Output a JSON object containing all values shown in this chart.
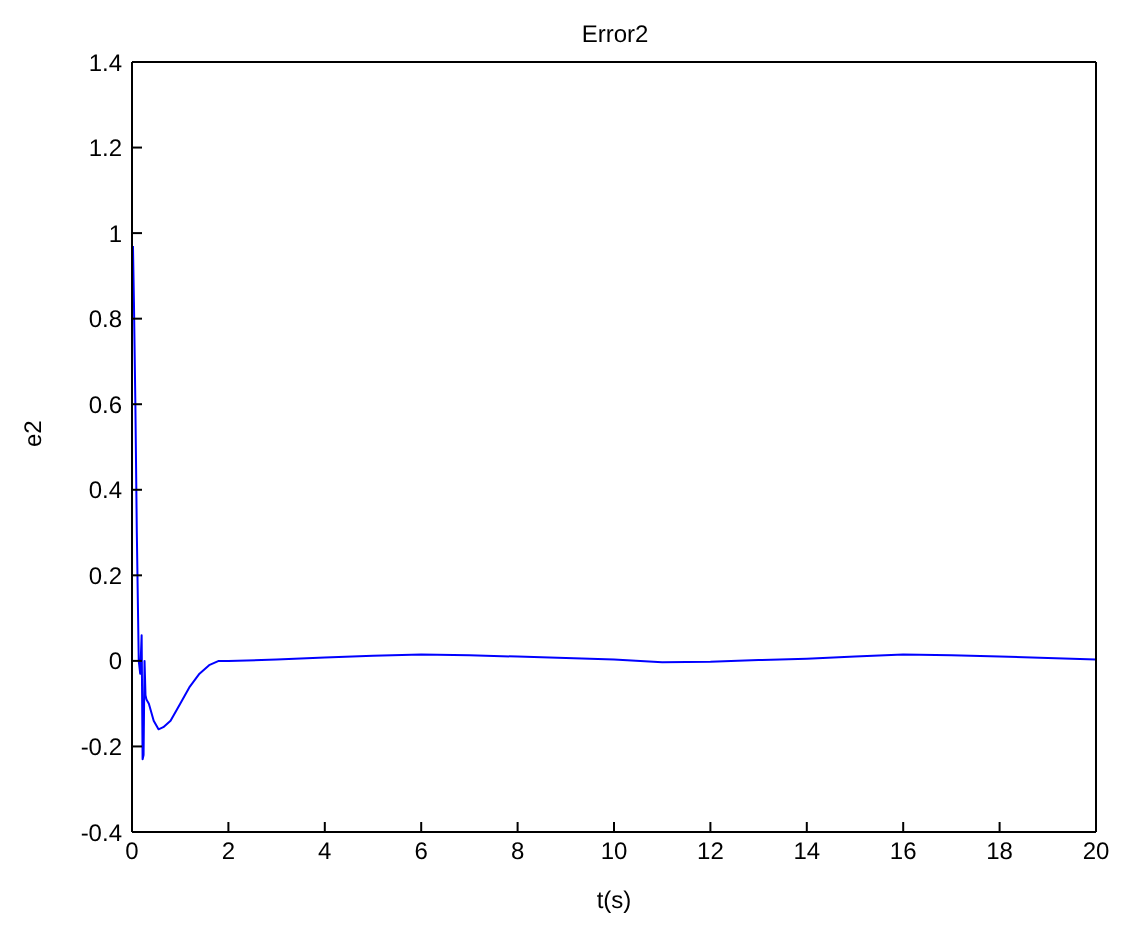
{
  "chart_data": {
    "type": "line",
    "title": "Error2",
    "xlabel": "t(s)",
    "ylabel": "e2",
    "x": [
      0.02,
      0.04,
      0.07,
      0.1,
      0.14,
      0.17,
      0.2,
      0.22,
      0.24,
      0.26,
      0.28,
      0.3,
      0.35,
      0.45,
      0.55,
      0.65,
      0.8,
      1.0,
      1.2,
      1.4,
      1.6,
      1.8,
      2,
      3,
      4,
      5,
      6,
      7,
      8,
      9,
      10,
      11,
      12,
      13,
      14,
      15,
      16,
      17,
      18,
      19,
      20
    ],
    "series": [
      {
        "color": "#0000ff",
        "values": [
          0.97,
          0.84,
          0.6,
          0.3,
          0.0,
          -0.03,
          0.06,
          -0.23,
          -0.22,
          0.0,
          -0.08,
          -0.09,
          -0.1,
          -0.14,
          -0.16,
          -0.155,
          -0.14,
          -0.1,
          -0.06,
          -0.03,
          -0.01,
          0.0,
          0.0,
          0.003,
          0.008,
          0.012,
          0.015,
          0.013,
          0.01,
          0.007,
          0.003,
          -0.003,
          -0.002,
          0.002,
          0.005,
          0.01,
          0.015,
          0.013,
          0.01,
          0.007,
          0.003
        ]
      }
    ],
    "xlim": [
      0,
      20
    ],
    "xticks": [
      0,
      2,
      4,
      6,
      8,
      10,
      12,
      14,
      16,
      18,
      20
    ],
    "ylim": [
      -0.4,
      1.4
    ],
    "yticks": [
      -0.4,
      -0.2,
      0,
      0.2,
      0.4,
      0.6,
      0.8,
      1,
      1.2,
      1.4
    ],
    "grid": false,
    "legend": false,
    "marker": "none",
    "line_style": "solid"
  }
}
